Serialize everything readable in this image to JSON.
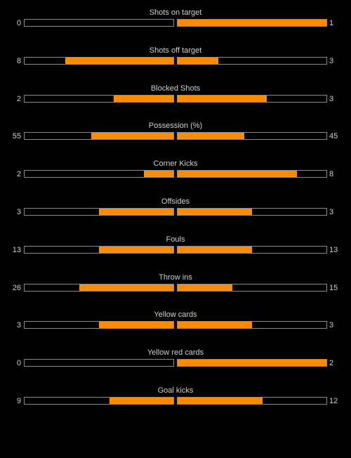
{
  "colors": {
    "background": "#000000",
    "bar_fill": "#ff8c00",
    "bar_border": "#8a8a8a",
    "text": "#d0d0d0"
  },
  "stats": [
    {
      "label": "Shots on target",
      "home": "0",
      "away": "1",
      "home_fill": 0.0,
      "away_fill": 1.0
    },
    {
      "label": "Shots off target",
      "home": "8",
      "away": "3",
      "home_fill": 0.727,
      "away_fill": 0.273
    },
    {
      "label": "Blocked Shots",
      "home": "2",
      "away": "3",
      "home_fill": 0.4,
      "away_fill": 0.6
    },
    {
      "label": "Possession (%)",
      "home": "55",
      "away": "45",
      "home_fill": 0.55,
      "away_fill": 0.45
    },
    {
      "label": "Corner Kicks",
      "home": "2",
      "away": "8",
      "home_fill": 0.2,
      "away_fill": 0.8
    },
    {
      "label": "Offsides",
      "home": "3",
      "away": "3",
      "home_fill": 0.5,
      "away_fill": 0.5
    },
    {
      "label": "Fouls",
      "home": "13",
      "away": "13",
      "home_fill": 0.5,
      "away_fill": 0.5
    },
    {
      "label": "Throw ins",
      "home": "26",
      "away": "15",
      "home_fill": 0.634,
      "away_fill": 0.366
    },
    {
      "label": "Yellow cards",
      "home": "3",
      "away": "3",
      "home_fill": 0.5,
      "away_fill": 0.5
    },
    {
      "label": "Yellow red cards",
      "home": "0",
      "away": "2",
      "home_fill": 0.0,
      "away_fill": 1.0
    },
    {
      "label": "Goal kicks",
      "home": "9",
      "away": "12",
      "home_fill": 0.429,
      "away_fill": 0.571
    }
  ]
}
